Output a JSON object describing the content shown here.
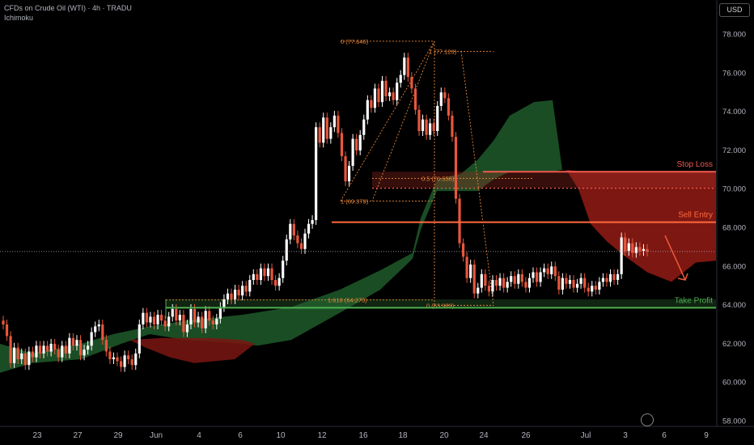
{
  "header": {
    "title": "CFDs on Crude Oil (WTI) · 4h · TRADU",
    "indicator": "Ichimoku",
    "currency": "USD"
  },
  "chart_data": {
    "type": "candlestick",
    "ylim": [
      58,
      79
    ],
    "y_ticks": [
      "58.000",
      "60.000",
      "62.000",
      "64.000",
      "66.000",
      "68.000",
      "70.000",
      "72.000",
      "74.000",
      "76.000",
      "78.000"
    ],
    "x_ticks": [
      "23",
      "27",
      "29",
      "Jun",
      "4",
      "6",
      "10",
      "12",
      "16",
      "18",
      "20",
      "24",
      "26",
      "Jul",
      "3",
      "6",
      "9"
    ],
    "last_price": 66.771,
    "levels": [
      {
        "name": "Stop Loss",
        "value": 70.9,
        "label": "70.900",
        "color": "#f05a50"
      },
      {
        "name": "",
        "value": 70.046,
        "label": "70.046",
        "color": "#f05a50"
      },
      {
        "name": "Sell Entry",
        "value": 68.286,
        "label": "68.286",
        "color": "#ff6a3d"
      },
      {
        "name": "Take Profit",
        "value": 63.864,
        "label": "63.864",
        "color": "#4caf50"
      }
    ],
    "fib_labels": [
      "0 (77.646)",
      "1 (77.123)",
      "0.5 (70.556)",
      "1 (69.379)",
      "1.618 (64.270)",
      "0 (63.989)"
    ],
    "candles": [
      [
        63.2,
        63.0
      ],
      [
        63.0,
        62.4
      ],
      [
        62.4,
        61.0
      ],
      [
        61.0,
        61.8
      ],
      [
        61.8,
        61.2
      ],
      [
        61.2,
        61.5
      ],
      [
        61.5,
        60.9
      ],
      [
        60.9,
        61.6
      ],
      [
        61.6,
        61.3
      ],
      [
        61.3,
        61.9
      ],
      [
        61.9,
        61.5
      ],
      [
        61.5,
        61.9
      ],
      [
        61.9,
        61.6
      ],
      [
        61.6,
        62.0
      ],
      [
        62.0,
        61.7
      ],
      [
        61.7,
        61.3
      ],
      [
        61.3,
        61.9
      ],
      [
        61.9,
        61.5
      ],
      [
        61.5,
        62.3
      ],
      [
        62.3,
        61.9
      ],
      [
        61.9,
        62.2
      ],
      [
        62.2,
        61.4
      ],
      [
        61.4,
        61.7
      ],
      [
        61.7,
        61.9
      ],
      [
        61.9,
        62.6
      ],
      [
        62.6,
        62.9
      ],
      [
        62.9,
        63.0
      ],
      [
        63.0,
        62.2
      ],
      [
        62.2,
        61.6
      ],
      [
        61.6,
        61.2
      ],
      [
        61.2,
        61.3
      ],
      [
        61.3,
        61.1
      ],
      [
        61.1,
        60.8
      ],
      [
        60.8,
        61.4
      ],
      [
        61.4,
        61.2
      ],
      [
        61.2,
        60.9
      ],
      [
        60.9,
        61.5
      ],
      [
        61.5,
        63.0
      ],
      [
        63.0,
        63.6
      ],
      [
        63.6,
        63.1
      ],
      [
        63.1,
        63.4
      ],
      [
        63.4,
        63.0
      ],
      [
        63.0,
        63.5
      ],
      [
        63.5,
        63.2
      ],
      [
        63.2,
        62.9
      ],
      [
        62.9,
        63.4
      ],
      [
        63.4,
        63.8
      ],
      [
        63.8,
        63.2
      ],
      [
        63.2,
        63.5
      ],
      [
        63.5,
        62.6
      ],
      [
        62.6,
        63.0
      ],
      [
        63.0,
        63.8
      ],
      [
        63.8,
        63.1
      ],
      [
        63.1,
        63.4
      ],
      [
        63.4,
        62.8
      ],
      [
        62.8,
        63.7
      ],
      [
        63.7,
        63.2
      ],
      [
        63.2,
        63.0
      ],
      [
        63.0,
        63.3
      ],
      [
        63.3,
        63.9
      ],
      [
        63.9,
        64.3
      ],
      [
        64.3,
        64.6
      ],
      [
        64.6,
        64.3
      ],
      [
        64.3,
        64.8
      ],
      [
        64.8,
        64.5
      ],
      [
        64.5,
        65.0
      ],
      [
        65.0,
        64.7
      ],
      [
        64.7,
        65.3
      ],
      [
        65.3,
        65.6
      ],
      [
        65.6,
        65.3
      ],
      [
        65.3,
        65.9
      ],
      [
        65.9,
        65.5
      ],
      [
        65.5,
        65.9
      ],
      [
        65.9,
        65.3
      ],
      [
        65.3,
        65.0
      ],
      [
        65.0,
        65.4
      ],
      [
        65.4,
        66.3
      ],
      [
        66.3,
        67.4
      ],
      [
        67.4,
        68.2
      ],
      [
        68.2,
        67.6
      ],
      [
        67.6,
        67.2
      ],
      [
        67.2,
        66.9
      ],
      [
        66.9,
        67.7
      ],
      [
        67.7,
        68.2
      ],
      [
        68.2,
        68.4
      ],
      [
        68.4,
        73.2
      ],
      [
        73.2,
        72.4
      ],
      [
        72.4,
        73.7
      ],
      [
        73.7,
        72.6
      ],
      [
        72.6,
        73.2
      ],
      [
        73.2,
        73.8
      ],
      [
        73.8,
        72.9
      ],
      [
        72.9,
        71.7
      ],
      [
        71.7,
        70.4
      ],
      [
        70.4,
        71.2
      ],
      [
        71.2,
        72.6
      ],
      [
        72.6,
        72.0
      ],
      [
        72.0,
        72.8
      ],
      [
        72.8,
        73.6
      ],
      [
        73.6,
        74.6
      ],
      [
        74.6,
        74.2
      ],
      [
        74.2,
        75.2
      ],
      [
        75.2,
        74.5
      ],
      [
        74.5,
        75.6
      ],
      [
        75.6,
        74.8
      ],
      [
        74.8,
        75.0
      ],
      [
        75.0,
        74.6
      ],
      [
        74.6,
        75.5
      ],
      [
        75.5,
        75.9
      ],
      [
        75.9,
        76.8
      ],
      [
        76.8,
        75.8
      ],
      [
        75.8,
        75.2
      ],
      [
        75.2,
        74.1
      ],
      [
        74.1,
        73.0
      ],
      [
        73.0,
        73.6
      ],
      [
        73.6,
        72.8
      ],
      [
        72.8,
        73.4
      ],
      [
        73.4,
        73.0
      ],
      [
        73.0,
        74.3
      ],
      [
        74.3,
        75.0
      ],
      [
        75.0,
        74.7
      ],
      [
        74.7,
        73.8
      ],
      [
        73.8,
        72.7
      ],
      [
        72.7,
        69.5
      ],
      [
        69.5,
        67.2
      ],
      [
        67.2,
        66.5
      ],
      [
        66.5,
        65.4
      ],
      [
        65.4,
        66.1
      ],
      [
        66.1,
        64.6
      ],
      [
        64.6,
        64.9
      ],
      [
        64.9,
        65.6
      ],
      [
        65.6,
        65.0
      ],
      [
        65.0,
        64.7
      ],
      [
        64.7,
        65.3
      ],
      [
        65.3,
        65.0
      ],
      [
        65.0,
        65.4
      ],
      [
        65.4,
        64.9
      ],
      [
        64.9,
        65.2
      ],
      [
        65.2,
        65.5
      ],
      [
        65.5,
        65.1
      ],
      [
        65.1,
        65.6
      ],
      [
        65.6,
        65.2
      ],
      [
        65.2,
        64.9
      ],
      [
        64.9,
        65.4
      ],
      [
        65.4,
        65.7
      ],
      [
        65.7,
        65.2
      ],
      [
        65.2,
        65.7
      ],
      [
        65.7,
        65.9
      ],
      [
        65.9,
        65.6
      ],
      [
        65.6,
        66.0
      ],
      [
        66.0,
        65.5
      ],
      [
        65.5,
        64.8
      ],
      [
        64.8,
        65.4
      ],
      [
        65.4,
        65.1
      ],
      [
        65.1,
        65.3
      ],
      [
        65.3,
        64.9
      ],
      [
        64.9,
        65.1
      ],
      [
        65.1,
        65.4
      ],
      [
        65.4,
        64.9
      ],
      [
        64.9,
        64.7
      ],
      [
        64.7,
        65.0
      ],
      [
        65.0,
        64.8
      ],
      [
        64.8,
        65.2
      ],
      [
        65.2,
        65.4
      ],
      [
        65.4,
        65.2
      ],
      [
        65.2,
        65.6
      ],
      [
        65.6,
        65.3
      ],
      [
        65.3,
        65.6
      ],
      [
        65.6,
        67.5
      ],
      [
        67.5,
        66.8
      ],
      [
        66.8,
        67.2
      ],
      [
        67.2,
        66.7
      ],
      [
        66.7,
        67.0
      ],
      [
        67.0,
        66.8
      ],
      [
        66.8,
        66.9
      ],
      [
        66.9,
        66.77
      ]
    ],
    "projection": [
      [
        0,
        67.6
      ],
      [
        0.7,
        66.0
      ],
      [
        1,
        65.3
      ]
    ]
  }
}
